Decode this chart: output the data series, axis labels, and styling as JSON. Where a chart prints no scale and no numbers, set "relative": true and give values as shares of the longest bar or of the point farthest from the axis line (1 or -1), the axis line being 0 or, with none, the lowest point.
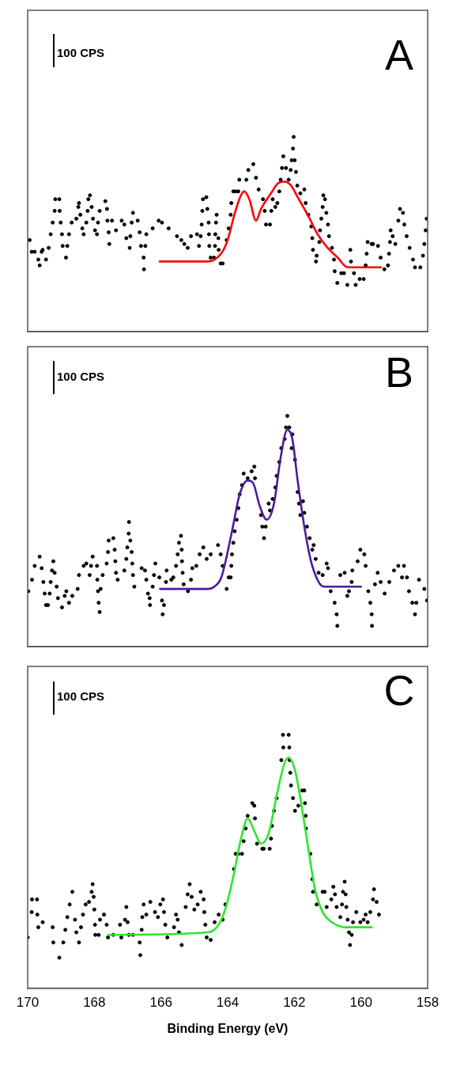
{
  "chart_data": [
    {
      "type": "scatter",
      "title": "A",
      "annotations": [
        "100 CPS"
      ],
      "relative": true,
      "xlim": [
        170,
        158
      ],
      "tick_labels": false,
      "series": [
        {
          "type": "scatter",
          "color": "#000000",
          "marker": "circle",
          "x": [
            169.94,
            169.88,
            169.79,
            169.68,
            169.64,
            169.58,
            169.55,
            169.45,
            169.37,
            169.31,
            169.25,
            169.19,
            169.17,
            169.05,
            169.04,
            169.01,
            168.97,
            168.95,
            168.85,
            168.81,
            168.76,
            168.68,
            168.54,
            168.48,
            168.46,
            168.42,
            168.36,
            168.32,
            168.24,
            168.2,
            168.18,
            168.13,
            168.08,
            168.04,
            167.98,
            167.92,
            167.89,
            167.84,
            167.67,
            167.62,
            167.61,
            167.57,
            167.55,
            167.47,
            167.35,
            167.18,
            167.1,
            167.04,
            166.94,
            166.92,
            166.88,
            166.84,
            166.7,
            166.64,
            166.6,
            166.52,
            166.51,
            166.47,
            166.44,
            166.25,
            166.07,
            165.97,
            165.77,
            165.52,
            165.39,
            165.3,
            165.2,
            165.1,
            164.92,
            164.86,
            164.81,
            164.78,
            164.76,
            164.74,
            164.64,
            164.61,
            164.57,
            164.56,
            164.55,
            164.51,
            164.41,
            164.38,
            164.37,
            164.35,
            164.33,
            164.28,
            164.27,
            164.21,
            164.15,
            164.03,
            163.97,
            163.91,
            163.89,
            163.83,
            163.76,
            163.68,
            163.65,
            163.44,
            163.38,
            163.23,
            163.15,
            163.07,
            162.94,
            162.89,
            162.85,
            162.73,
            162.69,
            162.65,
            162.57,
            162.51,
            162.45,
            162.41,
            162.37,
            162.33,
            162.25,
            162.17,
            162.11,
            162.08,
            162.04,
            162.02,
            161.99,
            161.95,
            161.91,
            161.82,
            161.7,
            161.66,
            161.58,
            161.49,
            161.46,
            161.44,
            161.35,
            161.33,
            161.25,
            161.23,
            161.19,
            161.15,
            161.13,
            161.08,
            161.04,
            160.99,
            160.96,
            160.87,
            160.81,
            160.79,
            160.71,
            160.59,
            160.51,
            160.41,
            160.32,
            160.3,
            160.21,
            160.16,
            160.04,
            159.92,
            159.86,
            159.83,
            159.8,
            159.68,
            159.64,
            159.49,
            159.41,
            159.3,
            159.19,
            159.16,
            159.13,
            159.11,
            159.05,
            158.97,
            158.88,
            158.83,
            158.74,
            158.7,
            158.63,
            158.54,
            158.44,
            158.38,
            158.22,
            158.14,
            158.1,
            158.06,
            158.03
          ],
          "values": [
            0.47,
            0.41,
            0.41,
            0.37,
            0.34,
            0.41,
            0.42,
            0.37,
            0.43,
            0.5,
            0.56,
            0.62,
            0.68,
            0.68,
            0.62,
            0.56,
            0.5,
            0.44,
            0.38,
            0.44,
            0.5,
            0.56,
            0.58,
            0.64,
            0.66,
            0.6,
            0.53,
            0.5,
            0.56,
            0.62,
            0.68,
            0.7,
            0.64,
            0.58,
            0.52,
            0.5,
            0.56,
            0.62,
            0.67,
            0.63,
            0.57,
            0.51,
            0.45,
            0.57,
            0.52,
            0.57,
            0.55,
            0.48,
            0.43,
            0.49,
            0.56,
            0.61,
            0.57,
            0.51,
            0.44,
            0.38,
            0.32,
            0.44,
            0.5,
            0.53,
            0.57,
            0.56,
            0.53,
            0.49,
            0.47,
            0.45,
            0.43,
            0.49,
            0.5,
            0.44,
            0.49,
            0.55,
            0.62,
            0.68,
            0.69,
            0.63,
            0.56,
            0.5,
            0.44,
            0.38,
            0.38,
            0.44,
            0.5,
            0.56,
            0.6,
            0.48,
            0.42,
            0.35,
            0.35,
            0.47,
            0.53,
            0.6,
            0.66,
            0.72,
            0.72,
            0.72,
            0.78,
            0.78,
            0.83,
            0.86,
            0.79,
            0.73,
            0.68,
            0.62,
            0.55,
            0.55,
            0.62,
            0.68,
            0.64,
            0.66,
            0.72,
            0.78,
            0.84,
            0.9,
            0.84,
            0.78,
            0.83,
            0.88,
            0.94,
            1,
            0.88,
            0.82,
            0.75,
            0.71,
            0.73,
            0.66,
            0.6,
            0.54,
            0.48,
            0.42,
            0.36,
            0.39,
            0.46,
            0.52,
            0.58,
            0.64,
            0.7,
            0.68,
            0.61,
            0.55,
            0.49,
            0.43,
            0.37,
            0.31,
            0.25,
            0.3,
            0.3,
            0.24,
            0.42,
            0.36,
            0.3,
            0.24,
            0.27,
            0.27,
            0.34,
            0.4,
            0.46,
            0.45,
            0.45,
            0.44,
            0.38,
            0.32,
            0.34,
            0.4,
            0.46,
            0.52,
            0.49,
            0.45,
            0.57,
            0.63,
            0.61,
            0.55,
            0.49,
            0.43,
            0.37,
            0.33,
            0.33,
            0.39,
            0.45,
            0.52,
            0.58
          ]
        },
        {
          "type": "line",
          "color": "#ff0000",
          "marker": "none",
          "x": [
            166.04,
            165.0,
            164.6,
            164.2,
            164.0,
            163.8,
            163.6,
            163.5,
            163.35,
            163.15,
            163.0,
            162.7,
            162.5,
            162.3,
            162.1,
            161.9,
            161.6,
            161.3,
            161.0,
            160.7,
            160.4,
            159.4
          ],
          "values": [
            0.36,
            0.36,
            0.36,
            0.4,
            0.47,
            0.6,
            0.7,
            0.72,
            0.68,
            0.57,
            0.63,
            0.71,
            0.76,
            0.77,
            0.75,
            0.69,
            0.6,
            0.5,
            0.43,
            0.38,
            0.33,
            0.33
          ]
        }
      ]
    },
    {
      "type": "scatter",
      "title": "B",
      "annotations": [
        "100 CPS"
      ],
      "relative": true,
      "xlim": [
        170,
        158
      ],
      "tick_labels": false,
      "series": [
        {
          "type": "scatter",
          "color": "#000000",
          "marker": "circle",
          "x": [
            169.98,
            169.87,
            169.79,
            169.64,
            169.58,
            169.53,
            169.49,
            169.45,
            169.39,
            169.34,
            169.31,
            169.27,
            169.23,
            169.19,
            169.13,
            169.09,
            168.97,
            168.89,
            168.84,
            168.76,
            168.66,
            168.5,
            168.46,
            168.32,
            168.24,
            168.14,
            168.1,
            168.05,
            167.92,
            167.91,
            167.89,
            167.87,
            167.84,
            167.81,
            167.75,
            167.63,
            167.59,
            167.57,
            167.43,
            167.39,
            167.37,
            167.35,
            167.3,
            167.1,
            167.04,
            167.01,
            166.97,
            166.96,
            166.92,
            166.88,
            166.86,
            166.84,
            166.8,
            166.58,
            166.48,
            166.44,
            166.39,
            166.34,
            166.33,
            166.25,
            166.21,
            166.17,
            166.05,
            165.97,
            165.95,
            165.91,
            165.85,
            165.83,
            165.69,
            165.63,
            165.55,
            165.5,
            165.46,
            165.4,
            165.38,
            165.37,
            165.35,
            165.32,
            165.19,
            165.1,
            165.06,
            164.94,
            164.84,
            164.73,
            164.63,
            164.51,
            164.29,
            164.21,
            164.15,
            164.03,
            163.97,
            163.91,
            163.89,
            163.87,
            163.83,
            163.79,
            163.73,
            163.68,
            163.64,
            163.57,
            163.52,
            163.4,
            163.28,
            163.2,
            163.18,
            163.0,
            162.96,
            162.91,
            162.86,
            162.77,
            162.73,
            162.65,
            162.57,
            162.53,
            162.45,
            162.39,
            162.29,
            162.25,
            162.21,
            162.15,
            162.06,
            162.08,
            161.98,
            161.9,
            161.86,
            161.82,
            161.74,
            161.7,
            161.62,
            161.54,
            161.46,
            161.42,
            161.36,
            161.27,
            161.15,
            161.03,
            160.99,
            160.91,
            160.79,
            160.73,
            160.71,
            160.62,
            160.49,
            160.41,
            160.36,
            160.28,
            160.26,
            160.1,
            160.02,
            159.9,
            159.86,
            159.78,
            159.72,
            159.68,
            159.67,
            159.58,
            159.5,
            159.41,
            159.29,
            159.15,
            159.01,
            158.88,
            158.77,
            158.71,
            158.62,
            158.56,
            158.46,
            158.38,
            158.34,
            158.26,
            158.1,
            158.02
          ],
          "values": [
            0.24,
            0.29,
            0.35,
            0.39,
            0.34,
            0.28,
            0.23,
            0.18,
            0.18,
            0.23,
            0.28,
            0.33,
            0.37,
            0.32,
            0.26,
            0.21,
            0.17,
            0.22,
            0.24,
            0.19,
            0.22,
            0.25,
            0.31,
            0.35,
            0.36,
            0.31,
            0.35,
            0.39,
            0.35,
            0.29,
            0.24,
            0.19,
            0.15,
            0.25,
            0.31,
            0.36,
            0.41,
            0.46,
            0.47,
            0.42,
            0.37,
            0.32,
            0.29,
            0.33,
            0.38,
            0.43,
            0.49,
            0.54,
            0.46,
            0.41,
            0.36,
            0.31,
            0.26,
            0.34,
            0.33,
            0.29,
            0.23,
            0.21,
            0.18,
            0.26,
            0.31,
            0.36,
            0.3,
            0.2,
            0.14,
            0.18,
            0.28,
            0.33,
            0.29,
            0.3,
            0.35,
            0.4,
            0.45,
            0.48,
            0.42,
            0.37,
            0.32,
            0.27,
            0.24,
            0.29,
            0.34,
            0.35,
            0.4,
            0.43,
            0.38,
            0.4,
            0.44,
            0.4,
            0.35,
            0.25,
            0.3,
            0.3,
            0.35,
            0.4,
            0.45,
            0.5,
            0.55,
            0.6,
            0.66,
            0.7,
            0.75,
            0.73,
            0.76,
            0.78,
            0.73,
            0.57,
            0.52,
            0.47,
            0.52,
            0.62,
            0.59,
            0.64,
            0.69,
            0.74,
            0.8,
            0.86,
            0.9,
            0.95,
            1,
            0.95,
            0.92,
            0.86,
            0.81,
            0.67,
            0.62,
            0.57,
            0.63,
            0.58,
            0.52,
            0.47,
            0.42,
            0.44,
            0.38,
            0.32,
            0.31,
            0.36,
            0.34,
            0.24,
            0.19,
            0.14,
            0.09,
            0.31,
            0.32,
            0.22,
            0.24,
            0.28,
            0.33,
            0.37,
            0.42,
            0.4,
            0.35,
            0.24,
            0.19,
            0.14,
            0.09,
            0.27,
            0.32,
            0.28,
            0.23,
            0.28,
            0.33,
            0.35,
            0.3,
            0.35,
            0.3,
            0.24,
            0.19,
            0.14,
            0.19,
            0.29,
            0.25,
            0.2
          ]
        },
        {
          "type": "line",
          "color": "#4a1c9e",
          "marker": "none",
          "x": [
            166.03,
            164.6,
            164.4,
            164.19,
            163.87,
            163.64,
            163.4,
            163.24,
            163.04,
            162.83,
            162.61,
            162.41,
            162.21,
            162.06,
            161.9,
            161.7,
            161.5,
            161.27,
            161.11,
            160.0
          ],
          "values": [
            0.25,
            0.25,
            0.26,
            0.3,
            0.5,
            0.66,
            0.72,
            0.71,
            0.61,
            0.55,
            0.62,
            0.82,
            0.94,
            0.9,
            0.72,
            0.52,
            0.37,
            0.28,
            0.26,
            0.26
          ]
        }
      ]
    },
    {
      "type": "scatter",
      "title": "C",
      "annotations": [
        "100 CPS"
      ],
      "relative": true,
      "xlim": [
        170,
        158
      ],
      "xticks": [
        170,
        168,
        166,
        164,
        162,
        160,
        158
      ],
      "tick_labels": "x",
      "xlabel": "Binding Energy (eV)",
      "series": [
        {
          "type": "scatter",
          "color": "#000000",
          "marker": "circle",
          "x": [
            170.0,
            169.88,
            169.87,
            169.72,
            169.71,
            169.68,
            169.55,
            169.25,
            169.23,
            169.05,
            168.93,
            168.87,
            168.81,
            168.74,
            168.66,
            168.58,
            168.54,
            168.46,
            168.4,
            168.34,
            168.26,
            168.16,
            168.08,
            168.05,
            168.02,
            168.0,
            167.98,
            167.97,
            167.87,
            167.83,
            167.71,
            167.63,
            167.59,
            167.43,
            167.23,
            167.19,
            167.08,
            167.04,
            167.0,
            166.96,
            166.84,
            166.64,
            166.62,
            166.58,
            166.56,
            166.52,
            166.44,
            166.32,
            166.18,
            166.09,
            166.02,
            165.94,
            165.91,
            165.87,
            165.81,
            165.61,
            165.55,
            165.5,
            165.46,
            165.38,
            165.26,
            165.2,
            165.14,
            165.08,
            165.0,
            164.9,
            164.81,
            164.72,
            164.7,
            164.67,
            164.63,
            164.51,
            164.39,
            164.27,
            164.15,
            164.07,
            163.81,
            163.76,
            163.68,
            163.57,
            163.52,
            163.46,
            163.4,
            163.26,
            163.2,
            163.18,
            163.12,
            162.96,
            162.92,
            162.74,
            162.7,
            162.67,
            162.61,
            162.53,
            162.39,
            162.34,
            162.33,
            162.17,
            162.15,
            162.14,
            162.12,
            162.1,
            162.04,
            161.98,
            161.88,
            161.76,
            161.7,
            161.68,
            161.66,
            161.65,
            161.52,
            161.46,
            161.44,
            161.33,
            161.15,
            161.09,
            161.03,
            160.89,
            160.83,
            160.78,
            160.73,
            160.62,
            160.57,
            160.54,
            160.49,
            160.46,
            160.44,
            160.4,
            160.36,
            160.33,
            160.28,
            160.24,
            160.14,
            160.02,
            159.92,
            159.86,
            159.8,
            159.72,
            159.64,
            159.61,
            159.53,
            159.46
          ],
          "values": [
            0.2,
            0.3,
            0.35,
            0.35,
            0.29,
            0.24,
            0.26,
            0.24,
            0.18,
            0.12,
            0.18,
            0.23,
            0.28,
            0.33,
            0.38,
            0.27,
            0.22,
            0.18,
            0.24,
            0.29,
            0.33,
            0.34,
            0.38,
            0.41,
            0.36,
            0.31,
            0.25,
            0.21,
            0.21,
            0.27,
            0.29,
            0.25,
            0.2,
            0.21,
            0.25,
            0.2,
            0.27,
            0.32,
            0.26,
            0.21,
            0.21,
            0.18,
            0.13,
            0.23,
            0.28,
            0.33,
            0.29,
            0.34,
            0.3,
            0.28,
            0.33,
            0.35,
            0.3,
            0.25,
            0.2,
            0.24,
            0.29,
            0.27,
            0.22,
            0.17,
            0.32,
            0.37,
            0.41,
            0.36,
            0.31,
            0.33,
            0.38,
            0.35,
            0.3,
            0.25,
            0.2,
            0.19,
            0.26,
            0.29,
            0.27,
            0.33,
            0.47,
            0.53,
            0.53,
            0.53,
            0.58,
            0.63,
            0.68,
            0.73,
            0.72,
            0.67,
            0.57,
            0.55,
            0.55,
            0.55,
            0.59,
            0.64,
            0.7,
            0.75,
            0.9,
            1,
            0.95,
            1,
            0.95,
            0.9,
            0.85,
            0.8,
            0.75,
            0.7,
            0.72,
            0.78,
            0.78,
            0.73,
            0.68,
            0.63,
            0.53,
            0.43,
            0.38,
            0.33,
            0.38,
            0.38,
            0.32,
            0.35,
            0.4,
            0.37,
            0.32,
            0.28,
            0.33,
            0.38,
            0.42,
            0.37,
            0.32,
            0.27,
            0.22,
            0.17,
            0.21,
            0.26,
            0.3,
            0.26,
            0.27,
            0.29,
            0.26,
            0.3,
            0.35,
            0.39,
            0.34,
            0.29
          ]
        },
        {
          "type": "line",
          "color": "#2ee62e",
          "marker": "none",
          "x": [
            167.58,
            164.6,
            164.4,
            164.19,
            164.03,
            163.83,
            163.6,
            163.4,
            163.2,
            163.0,
            162.77,
            162.53,
            162.29,
            162.17,
            161.98,
            161.82,
            161.58,
            161.38,
            161.15,
            160.87,
            160.47,
            159.68
          ],
          "values": [
            0.21,
            0.22,
            0.23,
            0.27,
            0.33,
            0.44,
            0.59,
            0.67,
            0.62,
            0.57,
            0.61,
            0.76,
            0.89,
            0.91,
            0.86,
            0.75,
            0.55,
            0.39,
            0.3,
            0.26,
            0.24,
            0.24
          ]
        }
      ]
    }
  ]
}
